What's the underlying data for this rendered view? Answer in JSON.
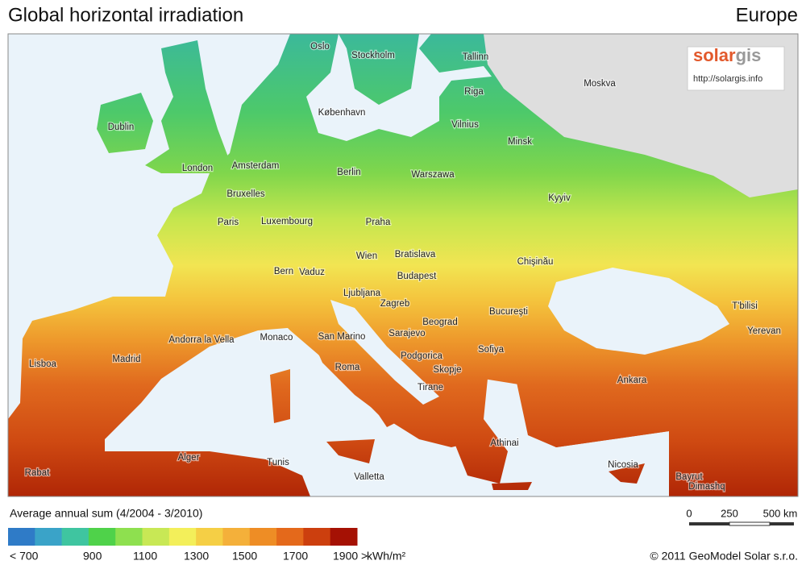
{
  "header": {
    "title": "Global horizontal irradiation",
    "region": "Europe"
  },
  "logo": {
    "brand_a": "solar",
    "brand_b": "gis",
    "url": "http://solargis.info"
  },
  "cities": [
    "Oslo",
    "Stockholm",
    "Tallinn",
    "Moskva",
    "Riga",
    "København",
    "Vilnius",
    "Dublin",
    "Minsk",
    "Amsterdam",
    "London",
    "Berlin",
    "Warszawa",
    "Bruxelles",
    "Kyyiv",
    "Paris",
    "Luxembourg",
    "Praha",
    "Bratislava",
    "Wien",
    "Chişinău",
    "Bern",
    "Vaduz",
    "Budapest",
    "Ljubljana",
    "Zagreb",
    "Bucureşti",
    "T'bilisi",
    "Beograd",
    "Sarajevo",
    "Yerevan",
    "Monaco",
    "San Marino",
    "Andorra la Vella",
    "Madrid",
    "Lisboa",
    "Podgorica",
    "Sofiya",
    "Roma",
    "Skopje",
    "Ankara",
    "Tirane",
    "Athinai",
    "Alger",
    "Tunis",
    "Nicosia",
    "Rabat",
    "Bayrut",
    "Dimashq",
    "Valletta"
  ],
  "legend": {
    "title": "Average annual sum (4/2004 - 3/2010)",
    "colors": [
      "#2f7bc7",
      "#3aa3c8",
      "#3fc5a0",
      "#4fd24a",
      "#8ee04f",
      "#c8e855",
      "#f3ef5a",
      "#f5cf45",
      "#f4b03a",
      "#ee8d25",
      "#e4691b",
      "#cc3f0e",
      "#a51104"
    ],
    "labels": [
      "< 700",
      "900",
      "1100",
      "1300",
      "1500",
      "1700",
      "1900 >"
    ],
    "unit": "kWh/m²"
  },
  "scale_bar": {
    "labels": [
      "0",
      "250",
      "500 km"
    ]
  },
  "copyright": "© 2011 GeoModel Solar s.r.o."
}
